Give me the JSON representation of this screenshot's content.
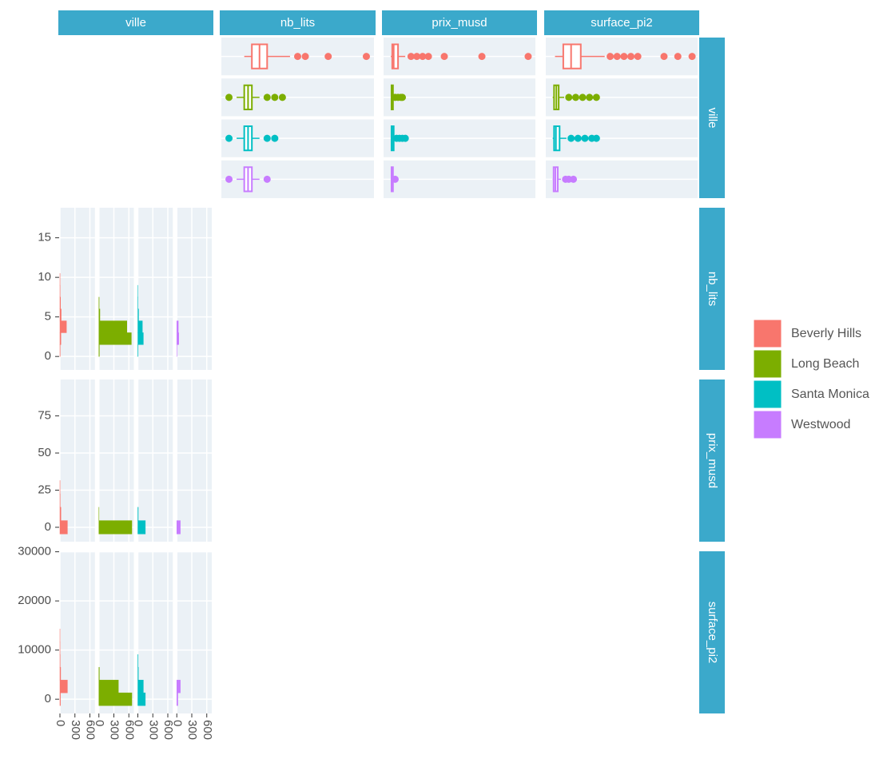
{
  "chart_data": {
    "type": "pairs",
    "variables": [
      "ville",
      "nb_lits",
      "prix_musd",
      "surface_pi2"
    ],
    "groups": [
      {
        "name": "Beverly Hills",
        "color": "#F8766D"
      },
      {
        "name": "Long Beach",
        "color": "#7CAE00"
      },
      {
        "name": "Santa Monica",
        "color": "#00BFC4"
      },
      {
        "name": "Westwood",
        "color": "#C77CFF"
      }
    ],
    "boxplots": [
      {
        "xlim": [
          -1,
          19
        ],
        "boxes": [
          {
            "low": 2,
            "q1": 3,
            "median": 4,
            "q3": 5,
            "high": 8,
            "outliers": [
              9,
              10,
              13,
              18
            ]
          },
          {
            "low": 1,
            "q1": 2,
            "median": 2.5,
            "q3": 3,
            "high": 4,
            "outliers": [
              0,
              5,
              6,
              7
            ]
          },
          {
            "low": 1,
            "q1": 2,
            "median": 2.5,
            "q3": 3,
            "high": 4,
            "outliers": [
              0,
              5,
              6
            ]
          },
          {
            "low": 1,
            "q1": 2,
            "median": 2.5,
            "q3": 3,
            "high": 4,
            "outliers": [
              0,
              5
            ]
          }
        ]
      },
      {
        "xlim": [
          -5,
          100
        ],
        "boxes": [
          {
            "low": 0,
            "q1": 1,
            "median": 2,
            "q3": 5,
            "high": 10,
            "outliers": [
              14,
              18,
              22,
              26,
              37,
              63,
              95
            ]
          },
          {
            "low": 0,
            "q1": 0.5,
            "median": 1,
            "q3": 1.5,
            "high": 2,
            "outliers": [
              3,
              5,
              7,
              8
            ]
          },
          {
            "low": 0,
            "q1": 0.5,
            "median": 1,
            "q3": 2,
            "high": 3,
            "outliers": [
              4,
              6,
              8,
              10
            ]
          },
          {
            "low": 0,
            "q1": 0.5,
            "median": 1,
            "q3": 1.5,
            "high": 2,
            "outliers": [
              3
            ]
          }
        ]
      },
      {
        "xlim": [
          -1500,
          31500
        ],
        "boxes": [
          {
            "low": 500,
            "q1": 2300,
            "median": 4000,
            "q3": 6100,
            "high": 11300,
            "outliers": [
              12500,
              14000,
              15500,
              17000,
              18500,
              24200,
              27200,
              30300
            ]
          },
          {
            "low": 0,
            "q1": 300,
            "median": 800,
            "q3": 1300,
            "high": 2500,
            "outliers": [
              3500,
              5000,
              6500,
              8000,
              9500
            ]
          },
          {
            "low": 0,
            "q1": 300,
            "median": 700,
            "q3": 1500,
            "high": 3000,
            "outliers": [
              4000,
              5500,
              7000,
              8500,
              9500
            ]
          },
          {
            "low": 0,
            "q1": 200,
            "median": 600,
            "q3": 1100,
            "high": 1800,
            "outliers": [
              2800,
              3500,
              4500
            ]
          }
        ]
      }
    ],
    "histograms": [
      {
        "ylim": [
          -1.7,
          18.8
        ],
        "yticks": [
          0,
          5,
          10,
          15
        ],
        "bins": [
          0,
          1.5,
          3,
          4.5,
          6,
          7.5,
          9,
          10.5
        ],
        "counts": [
          [
            5,
            20,
            130,
            25,
            12,
            4,
            2
          ],
          [
            10,
            650,
            560,
            20,
            5,
            0,
            0
          ],
          [
            5,
            110,
            90,
            15,
            3,
            1,
            0
          ],
          [
            2,
            40,
            30,
            0,
            0,
            0,
            0
          ]
        ]
      },
      {
        "ylim": [
          -9.7,
          99.5
        ],
        "yticks": [
          0,
          25,
          50,
          75
        ],
        "bins": [
          -4.5,
          4.5,
          13.5,
          22.5,
          31.5
        ],
        "counts": [
          [
            150,
            20,
            5,
            2
          ],
          [
            660,
            2,
            0,
            0
          ],
          [
            150,
            8,
            0,
            0
          ],
          [
            70,
            0,
            0,
            0
          ]
        ]
      },
      {
        "ylim": [
          -2900,
          30100
        ],
        "yticks": [
          0,
          10000,
          20000,
          30000
        ],
        "bins": [
          -1300,
          1300,
          3900,
          6500,
          9100,
          11700,
          14300
        ],
        "counts": [
          [
            10,
            150,
            15,
            5,
            2,
            1
          ],
          [
            660,
            390,
            10,
            0,
            0,
            0
          ],
          [
            150,
            110,
            10,
            5,
            0,
            0
          ],
          [
            20,
            70,
            0,
            0,
            0,
            0
          ]
        ]
      }
    ],
    "count_xlim": [
      0,
      700
    ],
    "count_xticks": [
      0,
      300,
      600
    ]
  }
}
